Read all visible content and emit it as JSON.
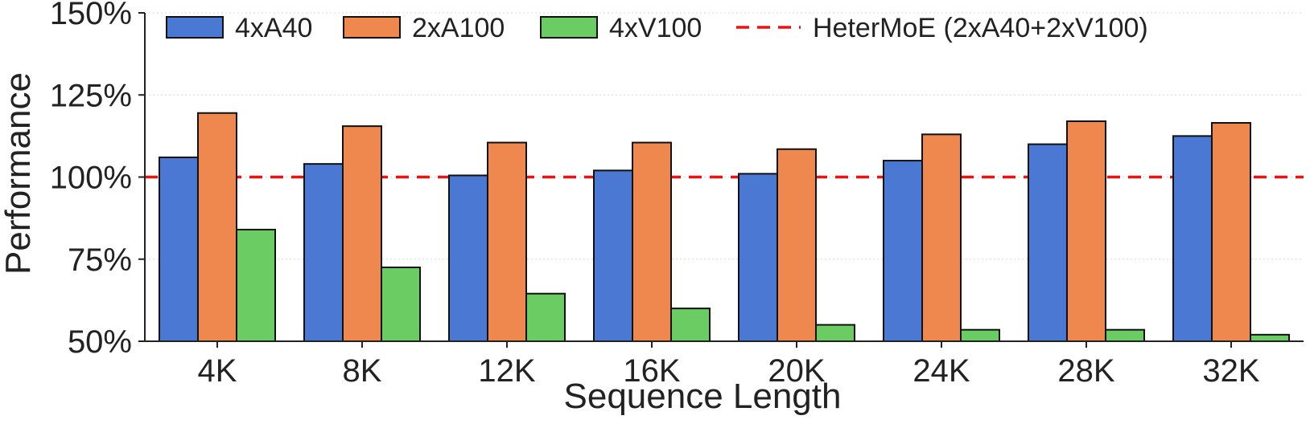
{
  "chart_data": {
    "type": "bar",
    "title": "",
    "xlabel": "Sequence Length",
    "ylabel": "Performance",
    "categories": [
      "4K",
      "8K",
      "12K",
      "16K",
      "20K",
      "24K",
      "28K",
      "32K"
    ],
    "series": [
      {
        "name": "4xA40",
        "color": "#4a78d2",
        "values": [
          106,
          104,
          100.5,
          102,
          101,
          105,
          110,
          112.5
        ]
      },
      {
        "name": "2xA100",
        "color": "#ee884e",
        "values": [
          119.5,
          115.5,
          110.5,
          110.5,
          108.5,
          113,
          117,
          116.5
        ]
      },
      {
        "name": "4xV100",
        "color": "#6bcc64",
        "values": [
          84,
          72.5,
          64.5,
          60,
          55,
          53.5,
          53.5,
          52
        ]
      }
    ],
    "reference_line": {
      "name": "HeterMoE (2xA40+2xV100)",
      "value": 100,
      "color": "#ee1111"
    },
    "ylim": [
      50,
      150
    ],
    "yticks": [
      50,
      75,
      100,
      125,
      150
    ],
    "ytick_labels": [
      "50%",
      "75%",
      "100%",
      "125%",
      "150%"
    ],
    "grid": true,
    "legend_position": "top"
  }
}
